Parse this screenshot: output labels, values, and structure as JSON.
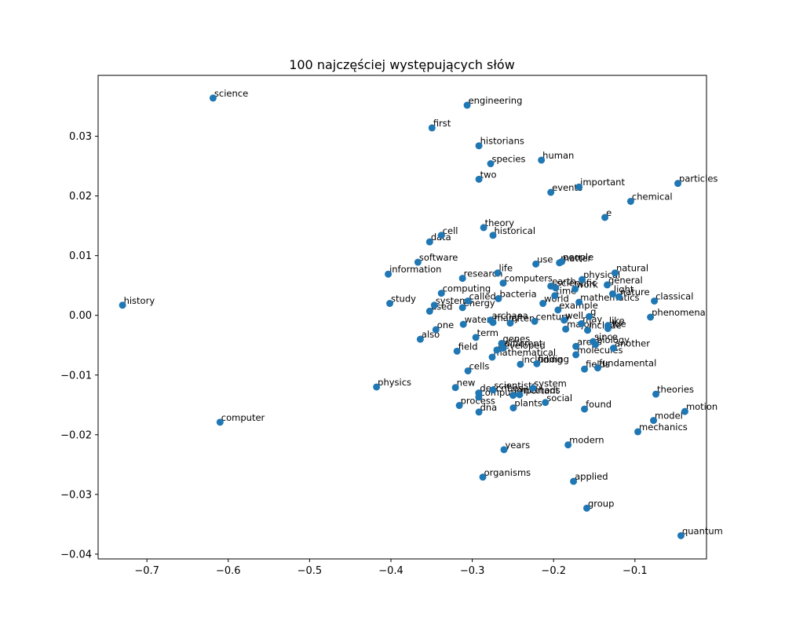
{
  "chart_data": {
    "type": "scatter",
    "title": "100 najczęściej występujących słów",
    "xlabel": "",
    "ylabel": "",
    "xlim": [
      -0.76,
      -0.012
    ],
    "ylim": [
      -0.0408,
      0.0402
    ],
    "xticks": [
      -0.7,
      -0.6,
      -0.5,
      -0.4,
      -0.3,
      -0.2,
      -0.1
    ],
    "xtick_labels": [
      "−0.7",
      "−0.6",
      "−0.5",
      "−0.4",
      "−0.3",
      "−0.2",
      "−0.1"
    ],
    "yticks": [
      -0.04,
      -0.03,
      -0.02,
      -0.01,
      0.0,
      0.01,
      0.02,
      0.03
    ],
    "ytick_labels": [
      "−0.04",
      "−0.03",
      "−0.02",
      "−0.01",
      "0.00",
      "0.01",
      "0.02",
      "0.03"
    ],
    "grid": false,
    "point_color": "#1f77b4",
    "points": [
      {
        "label": "science",
        "x": -0.6187,
        "y": 0.0364
      },
      {
        "label": "engineering",
        "x": -0.3063,
        "y": 0.0352
      },
      {
        "label": "first",
        "x": -0.3495,
        "y": 0.0314
      },
      {
        "label": "historians",
        "x": -0.2918,
        "y": 0.0284
      },
      {
        "label": "human",
        "x": -0.215,
        "y": 0.026
      },
      {
        "label": "species",
        "x": -0.2774,
        "y": 0.0254
      },
      {
        "label": "two",
        "x": -0.2918,
        "y": 0.0228
      },
      {
        "label": "important",
        "x": -0.1687,
        "y": 0.0215
      },
      {
        "label": "particles",
        "x": -0.0472,
        "y": 0.0221
      },
      {
        "label": "events",
        "x": -0.2034,
        "y": 0.0206
      },
      {
        "label": "chemical",
        "x": -0.1052,
        "y": 0.0191
      },
      {
        "label": "e",
        "x": -0.1369,
        "y": 0.0164
      },
      {
        "label": "theory",
        "x": -0.286,
        "y": 0.0147
      },
      {
        "label": "historical",
        "x": -0.2745,
        "y": 0.0134
      },
      {
        "label": "cell",
        "x": -0.338,
        "y": 0.0134
      },
      {
        "label": "data",
        "x": -0.3524,
        "y": 0.0123
      },
      {
        "label": "software",
        "x": -0.3668,
        "y": 0.0089
      },
      {
        "label": "use",
        "x": -0.2218,
        "y": 0.0086
      },
      {
        "label": "people",
        "x": -0.1899,
        "y": 0.009
      },
      {
        "label": "matter",
        "x": -0.1928,
        "y": 0.0088
      },
      {
        "label": "natural",
        "x": -0.1245,
        "y": 0.0071
      },
      {
        "label": "information",
        "x": -0.4033,
        "y": 0.0069
      },
      {
        "label": "life",
        "x": -0.2687,
        "y": 0.0071
      },
      {
        "label": "research",
        "x": -0.312,
        "y": 0.0062
      },
      {
        "label": "physical",
        "x": -0.1649,
        "y": 0.006
      },
      {
        "label": "computers",
        "x": -0.262,
        "y": 0.0054
      },
      {
        "label": "general",
        "x": -0.1341,
        "y": 0.0051
      },
      {
        "label": "earth",
        "x": -0.2034,
        "y": 0.0049
      },
      {
        "label": "scientific",
        "x": -0.1976,
        "y": 0.0046
      },
      {
        "label": "work",
        "x": -0.1736,
        "y": 0.0044
      },
      {
        "label": "computing",
        "x": -0.338,
        "y": 0.0037
      },
      {
        "label": "time",
        "x": -0.1985,
        "y": 0.0033
      },
      {
        "label": "light",
        "x": -0.1274,
        "y": 0.0036
      },
      {
        "label": "nature",
        "x": -0.1197,
        "y": 0.0031
      },
      {
        "label": "bacteria",
        "x": -0.2678,
        "y": 0.0028
      },
      {
        "label": "called",
        "x": -0.3053,
        "y": 0.0024
      },
      {
        "label": "classical",
        "x": -0.0761,
        "y": 0.0024
      },
      {
        "label": "mathematics",
        "x": -0.1687,
        "y": 0.0022
      },
      {
        "label": "world",
        "x": -0.2131,
        "y": 0.002
      },
      {
        "label": "history",
        "x": -0.73,
        "y": 0.0017
      },
      {
        "label": "study",
        "x": -0.4014,
        "y": 0.002
      },
      {
        "label": "systems",
        "x": -0.3466,
        "y": 0.0017
      },
      {
        "label": "energy",
        "x": -0.312,
        "y": 0.0013
      },
      {
        "label": "used",
        "x": -0.3524,
        "y": 0.0007
      },
      {
        "label": "example",
        "x": -0.1946,
        "y": 0.0009
      },
      {
        "label": "phenomena",
        "x": -0.0809,
        "y": -0.0003
      },
      {
        "label": "g",
        "x": -0.1562,
        "y": -0.0002
      },
      {
        "label": "archaea",
        "x": -0.2774,
        "y": -0.0008
      },
      {
        "label": "century",
        "x": -0.2233,
        "y": -0.001
      },
      {
        "label": "well",
        "x": -0.187,
        "y": -0.0008
      },
      {
        "label": "water",
        "x": -0.311,
        "y": -0.0015
      },
      {
        "label": "many",
        "x": -0.2745,
        "y": -0.0012
      },
      {
        "label": "often",
        "x": -0.2533,
        "y": -0.0013
      },
      {
        "label": "may",
        "x": -0.1658,
        "y": -0.0014
      },
      {
        "label": "major",
        "x": -0.1851,
        "y": -0.0023
      },
      {
        "label": "include",
        "x": -0.1582,
        "y": -0.0025
      },
      {
        "label": "like",
        "x": -0.1332,
        "y": -0.0017
      },
      {
        "label": "due",
        "x": -0.1332,
        "y": -0.0022
      },
      {
        "label": "one",
        "x": -0.3447,
        "y": -0.0024
      },
      {
        "label": "term",
        "x": -0.2956,
        "y": -0.0037
      },
      {
        "label": "also",
        "x": -0.3639,
        "y": -0.004
      },
      {
        "label": "since",
        "x": -0.1514,
        "y": -0.0044
      },
      {
        "label": "genes",
        "x": -0.2639,
        "y": -0.0047
      },
      {
        "label": "biology",
        "x": -0.1485,
        "y": -0.0049
      },
      {
        "label": "areas",
        "x": -0.1726,
        "y": -0.0052
      },
      {
        "label": "another",
        "x": -0.1264,
        "y": -0.0055
      },
      {
        "label": "different",
        "x": -0.262,
        "y": -0.0055
      },
      {
        "label": "developed",
        "x": -0.2697,
        "y": -0.0058
      },
      {
        "label": "field",
        "x": -0.3187,
        "y": -0.006
      },
      {
        "label": "molecules",
        "x": -0.1726,
        "y": -0.0066
      },
      {
        "label": "mathematical",
        "x": -0.2755,
        "y": -0.007
      },
      {
        "label": "including",
        "x": -0.2408,
        "y": -0.0082
      },
      {
        "label": "finding",
        "x": -0.2206,
        "y": -0.0081
      },
      {
        "label": "fields",
        "x": -0.162,
        "y": -0.009
      },
      {
        "label": "fundamental",
        "x": -0.1457,
        "y": -0.0088
      },
      {
        "label": "cells",
        "x": -0.3053,
        "y": -0.0093
      },
      {
        "label": "physics",
        "x": -0.4177,
        "y": -0.012
      },
      {
        "label": "new",
        "x": -0.3207,
        "y": -0.0121
      },
      {
        "label": "system",
        "x": -0.2255,
        "y": -0.0122
      },
      {
        "label": "scientists",
        "x": -0.2746,
        "y": -0.0125
      },
      {
        "label": "describes",
        "x": -0.292,
        "y": -0.013
      },
      {
        "label": "theories",
        "x": -0.0742,
        "y": -0.0132
      },
      {
        "label": "methods",
        "x": -0.2418,
        "y": -0.0133
      },
      {
        "label": "important",
        "x": -0.2498,
        "y": -0.0134
      },
      {
        "label": "computer",
        "x": -0.292,
        "y": -0.0137
      },
      {
        "label": "social",
        "x": -0.2101,
        "y": -0.0146
      },
      {
        "label": "process",
        "x": -0.3159,
        "y": -0.0151
      },
      {
        "label": "plants",
        "x": -0.2495,
        "y": -0.0155
      },
      {
        "label": "found",
        "x": -0.162,
        "y": -0.0157
      },
      {
        "label": "dna",
        "x": -0.2918,
        "y": -0.0162
      },
      {
        "label": "motion",
        "x": -0.0386,
        "y": -0.0161
      },
      {
        "label": "model",
        "x": -0.0771,
        "y": -0.0176
      },
      {
        "label": "computer",
        "x": -0.6101,
        "y": -0.0179
      },
      {
        "label": "mechanics",
        "x": -0.0964,
        "y": -0.0195
      },
      {
        "label": "modern",
        "x": -0.1822,
        "y": -0.0217
      },
      {
        "label": "years",
        "x": -0.261,
        "y": -0.0225
      },
      {
        "label": "organisms",
        "x": -0.287,
        "y": -0.0271
      },
      {
        "label": "applied",
        "x": -0.1755,
        "y": -0.0278
      },
      {
        "label": "group",
        "x": -0.1592,
        "y": -0.0323
      },
      {
        "label": "quantum",
        "x": -0.0434,
        "y": -0.0369
      }
    ]
  }
}
